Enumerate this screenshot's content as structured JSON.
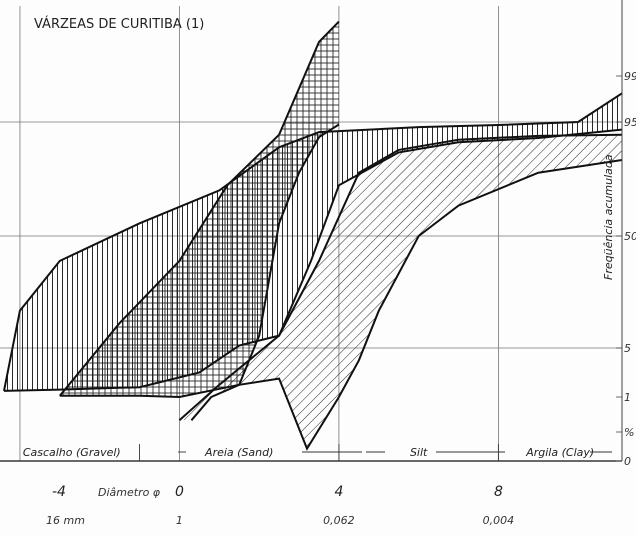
{
  "chart_data": {
    "type": "area",
    "title": "VÁRZEAS DE CURITIBA (1)",
    "ylabel": "Freqüência acumulada",
    "x_axis": {
      "label_phi": "Diâmetro φ",
      "label_phi_prefix": "-4",
      "label_mm": "16 mm",
      "phi_ticks": [
        "0",
        "4",
        "8"
      ],
      "mm_ticks": [
        "1",
        "0,062",
        "0,004"
      ],
      "range_phi": [
        -4.4,
        11.1
      ]
    },
    "y_axis": {
      "ticks": [
        "99",
        "95",
        "50",
        "5",
        "1",
        "%",
        "0"
      ]
    },
    "size_classes": [
      "Cascalho (Gravel)",
      "Areia (Sand)",
      "Silt",
      "Argila (Clay)"
    ],
    "grid": true,
    "series": [
      {
        "pattern": "vertical-hatch",
        "upper": [
          [
            -4.4,
            1.5
          ],
          [
            -4.0,
            20
          ],
          [
            -3.0,
            40
          ],
          [
            -1.0,
            55
          ],
          [
            1.0,
            68
          ],
          [
            2.5,
            85
          ],
          [
            3.5,
            91
          ],
          [
            6.0,
            93
          ],
          [
            8.0,
            93.8
          ],
          [
            10.0,
            95
          ],
          [
            11.1,
            97.5
          ]
        ],
        "lower": [
          [
            -4.4,
            1.5
          ],
          [
            -3.0,
            1.6
          ],
          [
            -1.0,
            1.8
          ],
          [
            0.5,
            3
          ],
          [
            1.5,
            6
          ],
          [
            2.5,
            10
          ],
          [
            3.3,
            40
          ],
          [
            4.0,
            70
          ],
          [
            5.5,
            83
          ],
          [
            7.0,
            87
          ],
          [
            9.0,
            88.7
          ],
          [
            11.1,
            92
          ]
        ]
      },
      {
        "pattern": "crosshatch",
        "upper": [
          [
            -3.0,
            1.1
          ],
          [
            -1.5,
            15
          ],
          [
            0.0,
            40
          ],
          [
            1.2,
            70
          ],
          [
            2.5,
            90
          ],
          [
            3.5,
            99.5
          ],
          [
            4.0,
            99.8
          ]
        ],
        "lower": [
          [
            -3.0,
            1.1
          ],
          [
            -1.0,
            1.1
          ],
          [
            0.0,
            1.0
          ],
          [
            1.5,
            2
          ],
          [
            2.0,
            10
          ],
          [
            2.5,
            55
          ],
          [
            3.0,
            75
          ],
          [
            3.5,
            89
          ],
          [
            4.0,
            94
          ]
        ]
      },
      {
        "pattern": "diagonal-hatch",
        "upper": [
          [
            0.0,
            0.8
          ],
          [
            1.0,
            2
          ],
          [
            2.5,
            10
          ],
          [
            3.5,
            40
          ],
          [
            4.5,
            75
          ],
          [
            5.5,
            84
          ],
          [
            7.0,
            88
          ],
          [
            9.0,
            89.5
          ],
          [
            11.1,
            90
          ]
        ],
        "lower": [
          [
            0.3,
            0.8
          ],
          [
            0.8,
            1
          ],
          [
            1.5,
            2
          ],
          [
            2.5,
            2.5
          ],
          [
            3.2,
            0.3
          ],
          [
            4.0,
            1
          ],
          [
            4.5,
            4
          ],
          [
            5.0,
            20
          ],
          [
            6.0,
            50
          ],
          [
            7.0,
            62
          ],
          [
            9.0,
            75
          ],
          [
            11.1,
            80
          ]
        ]
      }
    ]
  }
}
